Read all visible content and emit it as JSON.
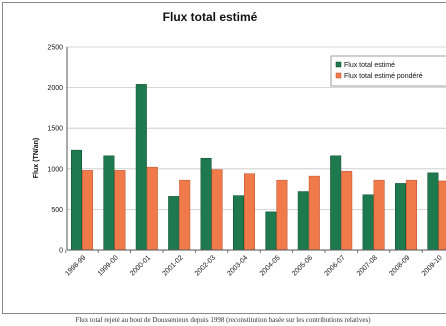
{
  "caption": "Flux total rejeté au bout de Doussenieux depuis 1998 (reconstitution basée sur les contributions relatives)",
  "colors": {
    "series1": "#1e7a4e",
    "series2": "#f07a4a",
    "series1_stroke": "#0f4a2c",
    "series2_stroke": "#b8502a"
  },
  "chart_data": {
    "type": "bar",
    "title": "Flux total estimé",
    "xlabel": "",
    "ylabel": "Flux (TN/an)",
    "ylim": [
      0,
      2500
    ],
    "yticks": [
      0,
      500,
      1000,
      1500,
      2000,
      2500
    ],
    "grid": true,
    "legend": "top-right",
    "categories": [
      "1998-99",
      "1999-00",
      "2000-01",
      "2001-02",
      "2002-03",
      "2003-04",
      "2004-05",
      "2005-06",
      "2006-07",
      "2007-08",
      "2008-09",
      "2009-10"
    ],
    "series": [
      {
        "name": "Flux total estimé",
        "values": [
          1230,
          1160,
          2040,
          660,
          1130,
          670,
          470,
          720,
          1160,
          680,
          820,
          950
        ]
      },
      {
        "name": "Flux total estimé pondéré",
        "values": [
          980,
          980,
          1020,
          860,
          990,
          940,
          860,
          910,
          970,
          860,
          860,
          850
        ]
      }
    ]
  }
}
